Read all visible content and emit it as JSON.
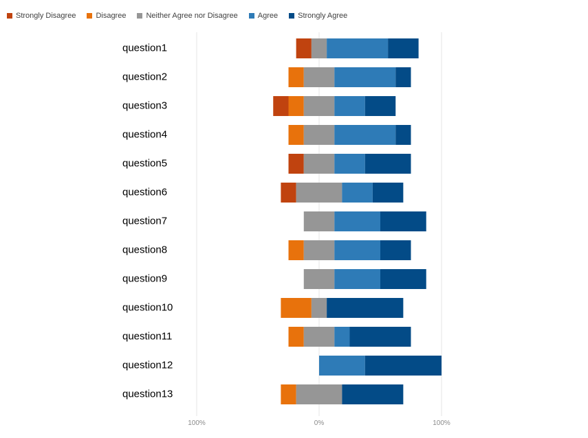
{
  "chart_data": {
    "type": "bar",
    "orientation": "horizontal",
    "stacked": "diverging",
    "categories": [
      "question1",
      "question2",
      "question3",
      "question4",
      "question5",
      "question6",
      "question7",
      "question8",
      "question9",
      "question10",
      "question11",
      "question12",
      "question13"
    ],
    "series": [
      {
        "name": "Strongly Disagree",
        "color": "#c0430f",
        "values": [
          0.125,
          0,
          0.125,
          0,
          0.125,
          0.125,
          0,
          0,
          0,
          0,
          0,
          0,
          0
        ]
      },
      {
        "name": "Disagree",
        "color": "#e8720c",
        "values": [
          0,
          0.125,
          0.125,
          0.125,
          0,
          0,
          0,
          0.125,
          0,
          0.25,
          0.125,
          0,
          0.125
        ]
      },
      {
        "name": "Neither Agree nor Disagree",
        "color": "#969696",
        "values": [
          0.125,
          0.25,
          0.25,
          0.25,
          0.25,
          0.375,
          0.25,
          0.25,
          0.25,
          0.125,
          0.25,
          0,
          0.375
        ]
      },
      {
        "name": "Agree",
        "color": "#2e7bb7",
        "values": [
          0.5,
          0.5,
          0.25,
          0.5,
          0.25,
          0.25,
          0.375,
          0.375,
          0.375,
          0,
          0.125,
          0.375,
          0
        ]
      },
      {
        "name": "Strongly Agree",
        "color": "#034b87",
        "values": [
          0.25,
          0.125,
          0.25,
          0.125,
          0.375,
          0.25,
          0.375,
          0.25,
          0.375,
          0.625,
          0.5,
          0.625,
          0.5
        ]
      }
    ],
    "xlim": [
      -1,
      1
    ],
    "xticks": [
      "100%",
      "0%",
      "100%"
    ],
    "grid": true,
    "legend_position": "top-left",
    "title": "",
    "xlabel": "",
    "ylabel": ""
  }
}
